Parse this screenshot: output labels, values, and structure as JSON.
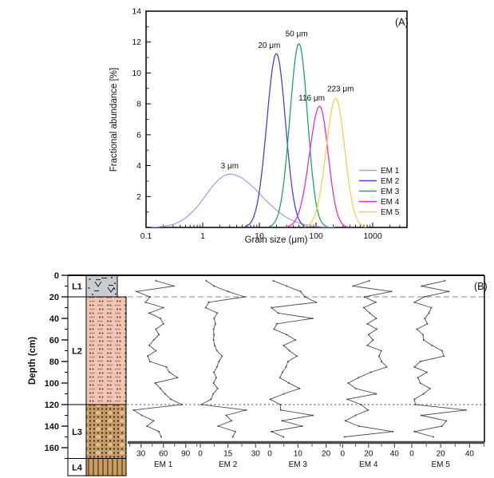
{
  "figure": {
    "panel_a_label": "(A)",
    "panel_b_label": "(B)"
  },
  "chart_data": [
    {
      "id": "grain-size-distribution",
      "panel": "A",
      "type": "line",
      "xlabel": "Grain size (μm)",
      "ylabel": "Fractional abundance [%]",
      "x_scale": "log",
      "xlim": [
        0.1,
        4000
      ],
      "ylim": [
        0,
        14
      ],
      "x_ticks": [
        0.1,
        1,
        10,
        100,
        1000
      ],
      "y_ticks": [
        2,
        4,
        6,
        8,
        10,
        12,
        14
      ],
      "grid": false,
      "legend_position": "lower right",
      "series": [
        {
          "name": "EM 1",
          "color": "#b49be9",
          "peak_um": 3,
          "peak_label": "3 μm",
          "peak_height": 3.45,
          "sigma_left": 0.42,
          "sigma_right": 0.55,
          "label_dx": 0,
          "label_dy": 0
        },
        {
          "name": "EM 2",
          "color": "#4343d8",
          "peak_um": 20,
          "peak_label": "20 μm",
          "peak_height": 11.25,
          "sigma_left": 0.17,
          "sigma_right": 0.16,
          "label_dx": -9,
          "label_dy": 0
        },
        {
          "name": "EM 3",
          "color": "#17a968",
          "peak_um": 50,
          "peak_label": "50 μm",
          "peak_height": 11.9,
          "sigma_left": 0.16,
          "sigma_right": 0.15,
          "label_dx": -3,
          "label_dy": -2
        },
        {
          "name": "EM 4",
          "color": "#ee2bd2",
          "peak_um": 116,
          "peak_label": "116 μm",
          "peak_height": 7.85,
          "sigma_left": 0.18,
          "sigma_right": 0.15,
          "label_dx": -10,
          "label_dy": 0
        },
        {
          "name": "EM 5",
          "color": "#f6cf4b",
          "peak_um": 223,
          "peak_label": "223 μm",
          "peak_height": 8.35,
          "sigma_left": 0.17,
          "sigma_right": 0.16,
          "label_dx": 6,
          "label_dy": -2
        }
      ],
      "legend": [
        "EM 1",
        "EM 2",
        "EM 3",
        "EM 4",
        "EM 5"
      ]
    },
    {
      "id": "end-member-depth-profiles",
      "panel": "B",
      "type": "line",
      "ylabel": "Depth (cm)",
      "depth_axis_ticks": [
        0,
        20,
        40,
        60,
        80,
        100,
        120,
        140,
        160
      ],
      "depth_minor_ticks": [
        10,
        30,
        50,
        70,
        90,
        110,
        130,
        150,
        170
      ],
      "boundaries_cm": {
        "dashed": 20,
        "dotted": 120
      },
      "depths_cm": [
        5,
        10,
        15,
        20,
        25,
        30,
        35,
        40,
        45,
        50,
        55,
        60,
        65,
        70,
        75,
        80,
        85,
        90,
        95,
        100,
        105,
        110,
        115,
        120,
        125,
        130,
        135,
        140,
        145,
        150
      ],
      "profiles": [
        {
          "name": "EM 1",
          "x_ticks": [
            30,
            60,
            90
          ],
          "x_minor_ticks": [
            15,
            45,
            75,
            105
          ],
          "values": [
            50,
            74,
            24,
            42,
            36,
            60,
            41,
            56,
            60,
            50,
            54,
            47,
            41,
            50,
            39,
            42,
            64,
            68,
            79,
            49,
            56,
            62,
            70,
            85,
            20,
            31,
            47,
            38,
            54,
            57
          ]
        },
        {
          "name": "EM 2",
          "x_ticks": [
            0,
            15,
            30
          ],
          "x_minor_ticks": [
            7.5,
            22.5
          ],
          "values": [
            3.2,
            7.5,
            15,
            24.1,
            4.6,
            2.9,
            9.2,
            7.5,
            8.2,
            7.2,
            7.4,
            7.2,
            7.8,
            9,
            11.8,
            10.1,
            9,
            7.4,
            8.6,
            7.2,
            9.4,
            7,
            5.8,
            0.5,
            24.8,
            14,
            16.9,
            9.7,
            19,
            17.6
          ]
        },
        {
          "name": "EM 3",
          "x_ticks": [
            0,
            10,
            20
          ],
          "x_minor_ticks": [
            5,
            15,
            25
          ],
          "values": [
            1.3,
            6,
            11,
            12.5,
            16.5,
            0.6,
            3,
            15.2,
            2.5,
            1.5,
            6,
            9.1,
            4.9,
            7,
            9.6,
            6.5,
            5.8,
            4.5,
            3.6,
            6.8,
            10.6,
            5,
            0.2,
            3.7,
            3.9,
            15.3,
            4.4,
            11.5,
            0.6,
            4.9
          ]
        },
        {
          "name": "EM 4",
          "x_ticks": [
            0,
            20,
            40
          ],
          "x_minor_ticks": [
            10,
            30
          ],
          "values": [
            20.6,
            8,
            37.6,
            16.8,
            25.5,
            16.4,
            21,
            25.9,
            19.1,
            26.3,
            20,
            23.4,
            19.1,
            29.8,
            28.1,
            30,
            34,
            21.7,
            12.2,
            4.3,
            10,
            25.9,
            3.6,
            14.2,
            19.6,
            10,
            2.1,
            12.5,
            38.7,
            1.5
          ]
        },
        {
          "name": "EM 5",
          "x_ticks": [
            0,
            20,
            40
          ],
          "x_minor_ticks": [
            10,
            30,
            50
          ],
          "values": [
            22.9,
            6.8,
            25.6,
            8.6,
            1.8,
            13.6,
            11.8,
            9,
            10.8,
            3.6,
            7.7,
            8.2,
            14,
            20.9,
            22.2,
            5.9,
            1.8,
            10.4,
            4.2,
            5.9,
            12.6,
            8.2,
            1.8,
            2.5,
            37.4,
            6.5,
            23.9,
            20.9,
            1.8,
            15
          ]
        }
      ],
      "layers": [
        {
          "name": "L1",
          "from_cm": 0,
          "to_cm": 20,
          "color": "#c9ccd1",
          "pattern": "fill-symbols"
        },
        {
          "name": "L2",
          "from_cm": 20,
          "to_cm": 120,
          "color": "#efc6b4",
          "pattern": "dots-and-dashes"
        },
        {
          "name": "L3",
          "from_cm": 120,
          "to_cm": 170,
          "color": "#c69c67",
          "pattern": "dots-and-circles"
        },
        {
          "name": "L4",
          "from_cm": 170,
          "to_cm": 186,
          "color": "#c69c67",
          "pattern": "vertical-lines"
        }
      ],
      "line_color": "#4d4d4d"
    }
  ]
}
